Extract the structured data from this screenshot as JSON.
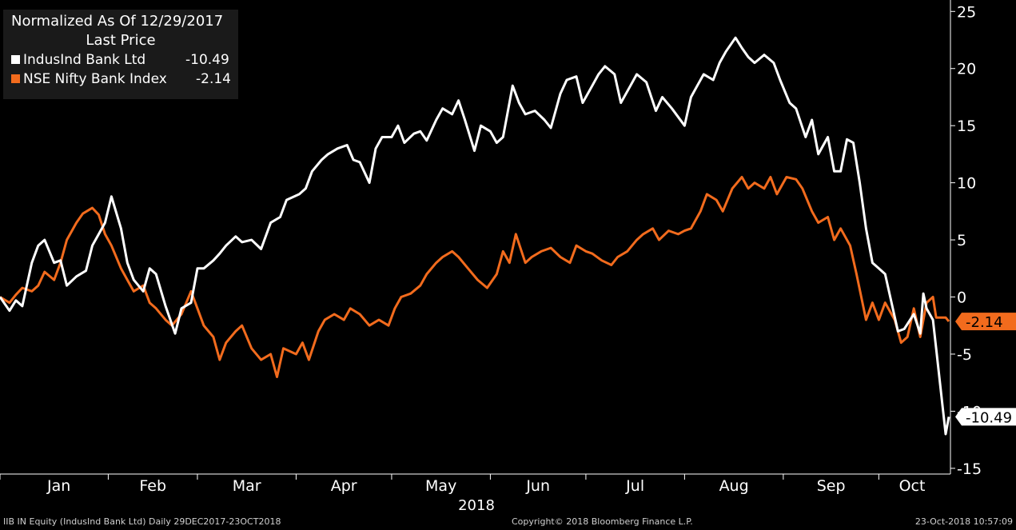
{
  "legend": {
    "title": "Normalized As Of 12/29/2017",
    "subtitle": "Last Price",
    "entries": [
      {
        "name": "IndusInd Bank Ltd",
        "value": "-10.49",
        "color": "#ffffff"
      },
      {
        "name": "NSE Nifty Bank Index",
        "value": "-2.14",
        "color": "#f26b1d"
      }
    ]
  },
  "footer": {
    "left": "IIB IN Equity (IndusInd Bank Ltd)  Daily 29DEC2017-23OCT2018",
    "center": "Copyright© 2018 Bloomberg Finance L.P.",
    "right": "23-Oct-2018 10:57:09"
  },
  "chart_data": {
    "type": "line",
    "xlabel": "2018",
    "x_ticks": [
      "Jan",
      "Feb",
      "Mar",
      "Apr",
      "May",
      "Jun",
      "Jul",
      "Aug",
      "Sep",
      "Oct"
    ],
    "y_ticks": [
      25,
      20,
      15,
      10,
      5,
      0,
      -5,
      -10,
      -15
    ],
    "ylim": [
      -15.5,
      26
    ],
    "xlim": [
      "2017-12-29",
      "2018-10-23"
    ],
    "grid": false,
    "legend_position": "top-left",
    "last_value_labels": [
      "-10.49",
      "-2.14"
    ],
    "series": [
      {
        "name": "IndusInd Bank Ltd",
        "color": "#ffffff",
        "points": [
          [
            "2017-12-29",
            0
          ],
          [
            "2018-01-01",
            -1.2
          ],
          [
            "2018-01-03",
            -0.3
          ],
          [
            "2018-01-05",
            -0.8
          ],
          [
            "2018-01-08",
            3.0
          ],
          [
            "2018-01-10",
            4.5
          ],
          [
            "2018-01-12",
            5.0
          ],
          [
            "2018-01-15",
            3.0
          ],
          [
            "2018-01-17",
            3.2
          ],
          [
            "2018-01-19",
            1.0
          ],
          [
            "2018-01-22",
            1.8
          ],
          [
            "2018-01-25",
            2.3
          ],
          [
            "2018-01-27",
            4.5
          ],
          [
            "2018-01-29",
            5.5
          ],
          [
            "2018-01-31",
            6.5
          ],
          [
            "2018-02-02",
            8.8
          ],
          [
            "2018-02-05",
            6.0
          ],
          [
            "2018-02-07",
            3.0
          ],
          [
            "2018-02-09",
            1.5
          ],
          [
            "2018-02-12",
            0.5
          ],
          [
            "2018-02-14",
            2.5
          ],
          [
            "2018-02-16",
            2.0
          ],
          [
            "2018-02-19",
            -0.8
          ],
          [
            "2018-02-22",
            -3.2
          ],
          [
            "2018-02-24",
            -1.0
          ],
          [
            "2018-02-27",
            -0.5
          ],
          [
            "2018-03-01",
            2.5
          ],
          [
            "2018-03-03",
            2.5
          ],
          [
            "2018-03-06",
            3.2
          ],
          [
            "2018-03-08",
            3.8
          ],
          [
            "2018-03-10",
            4.5
          ],
          [
            "2018-03-13",
            5.3
          ],
          [
            "2018-03-15",
            4.8
          ],
          [
            "2018-03-18",
            5.0
          ],
          [
            "2018-03-21",
            4.2
          ],
          [
            "2018-03-24",
            6.5
          ],
          [
            "2018-03-27",
            7.0
          ],
          [
            "2018-03-29",
            8.5
          ],
          [
            "2018-04-02",
            9.0
          ],
          [
            "2018-04-04",
            9.5
          ],
          [
            "2018-04-06",
            11.0
          ],
          [
            "2018-04-09",
            12.0
          ],
          [
            "2018-04-11",
            12.5
          ],
          [
            "2018-04-14",
            13.0
          ],
          [
            "2018-04-17",
            13.3
          ],
          [
            "2018-04-19",
            12.0
          ],
          [
            "2018-04-21",
            11.8
          ],
          [
            "2018-04-24",
            10.0
          ],
          [
            "2018-04-26",
            13.0
          ],
          [
            "2018-04-28",
            14.0
          ],
          [
            "2018-05-01",
            14.0
          ],
          [
            "2018-05-03",
            15.0
          ],
          [
            "2018-05-05",
            13.5
          ],
          [
            "2018-05-08",
            14.3
          ],
          [
            "2018-05-10",
            14.5
          ],
          [
            "2018-05-12",
            13.7
          ],
          [
            "2018-05-15",
            15.5
          ],
          [
            "2018-05-17",
            16.5
          ],
          [
            "2018-05-20",
            16.0
          ],
          [
            "2018-05-22",
            17.2
          ],
          [
            "2018-05-24",
            15.5
          ],
          [
            "2018-05-27",
            12.8
          ],
          [
            "2018-05-29",
            15.0
          ],
          [
            "2018-06-01",
            14.5
          ],
          [
            "2018-06-03",
            13.5
          ],
          [
            "2018-06-05",
            14.0
          ],
          [
            "2018-06-08",
            18.5
          ],
          [
            "2018-06-10",
            17.0
          ],
          [
            "2018-06-12",
            16.0
          ],
          [
            "2018-06-15",
            16.3
          ],
          [
            "2018-06-18",
            15.5
          ],
          [
            "2018-06-20",
            14.8
          ],
          [
            "2018-06-23",
            17.8
          ],
          [
            "2018-06-25",
            19.0
          ],
          [
            "2018-06-28",
            19.3
          ],
          [
            "2018-06-30",
            17.0
          ],
          [
            "2018-07-03",
            18.5
          ],
          [
            "2018-07-05",
            19.5
          ],
          [
            "2018-07-07",
            20.2
          ],
          [
            "2018-07-10",
            19.5
          ],
          [
            "2018-07-12",
            17.0
          ],
          [
            "2018-07-15",
            18.5
          ],
          [
            "2018-07-17",
            19.5
          ],
          [
            "2018-07-20",
            18.8
          ],
          [
            "2018-07-23",
            16.3
          ],
          [
            "2018-07-25",
            17.5
          ],
          [
            "2018-07-28",
            16.5
          ],
          [
            "2018-08-01",
            15.0
          ],
          [
            "2018-08-03",
            17.5
          ],
          [
            "2018-08-05",
            18.5
          ],
          [
            "2018-08-07",
            19.5
          ],
          [
            "2018-08-10",
            19.0
          ],
          [
            "2018-08-12",
            20.5
          ],
          [
            "2018-08-14",
            21.5
          ],
          [
            "2018-08-17",
            22.7
          ],
          [
            "2018-08-19",
            21.8
          ],
          [
            "2018-08-21",
            21.0
          ],
          [
            "2018-08-23",
            20.5
          ],
          [
            "2018-08-26",
            21.2
          ],
          [
            "2018-08-29",
            20.5
          ],
          [
            "2018-08-31",
            19.0
          ],
          [
            "2018-09-03",
            17.0
          ],
          [
            "2018-09-05",
            16.5
          ],
          [
            "2018-09-08",
            14.0
          ],
          [
            "2018-09-10",
            15.5
          ],
          [
            "2018-09-12",
            12.5
          ],
          [
            "2018-09-15",
            14.0
          ],
          [
            "2018-09-17",
            11.0
          ],
          [
            "2018-09-19",
            11.0
          ],
          [
            "2018-09-21",
            13.8
          ],
          [
            "2018-09-23",
            13.5
          ],
          [
            "2018-09-25",
            10.0
          ],
          [
            "2018-09-27",
            6.0
          ],
          [
            "2018-09-29",
            3.0
          ],
          [
            "2018-10-01",
            2.5
          ],
          [
            "2018-10-03",
            2.0
          ],
          [
            "2018-10-05",
            -0.5
          ],
          [
            "2018-10-07",
            -3.0
          ],
          [
            "2018-10-09",
            -2.8
          ],
          [
            "2018-10-12",
            -1.5
          ],
          [
            "2018-10-14",
            -3.2
          ],
          [
            "2018-10-15",
            0.3
          ],
          [
            "2018-10-16",
            -1.0
          ],
          [
            "2018-10-18",
            -2.0
          ],
          [
            "2018-10-19",
            -4.5
          ],
          [
            "2018-10-22",
            -12.0
          ],
          [
            "2018-10-23",
            -10.49
          ]
        ]
      },
      {
        "name": "NSE Nifty Bank Index",
        "color": "#f26b1d",
        "points": [
          [
            "2017-12-29",
            0
          ],
          [
            "2018-01-01",
            -0.5
          ],
          [
            "2018-01-03",
            0.2
          ],
          [
            "2018-01-05",
            0.8
          ],
          [
            "2018-01-08",
            0.5
          ],
          [
            "2018-01-10",
            1.0
          ],
          [
            "2018-01-12",
            2.2
          ],
          [
            "2018-01-15",
            1.5
          ],
          [
            "2018-01-17",
            3.0
          ],
          [
            "2018-01-19",
            5.0
          ],
          [
            "2018-01-22",
            6.5
          ],
          [
            "2018-01-24",
            7.3
          ],
          [
            "2018-01-27",
            7.8
          ],
          [
            "2018-01-29",
            7.2
          ],
          [
            "2018-01-31",
            5.5
          ],
          [
            "2018-02-02",
            4.5
          ],
          [
            "2018-02-05",
            2.5
          ],
          [
            "2018-02-07",
            1.5
          ],
          [
            "2018-02-09",
            0.5
          ],
          [
            "2018-02-12",
            1.0
          ],
          [
            "2018-02-14",
            -0.5
          ],
          [
            "2018-02-16",
            -1.0
          ],
          [
            "2018-02-19",
            -2.0
          ],
          [
            "2018-02-21",
            -2.5
          ],
          [
            "2018-02-24",
            -1.5
          ],
          [
            "2018-02-27",
            0.5
          ],
          [
            "2018-03-01",
            -1.0
          ],
          [
            "2018-03-03",
            -2.5
          ],
          [
            "2018-03-06",
            -3.5
          ],
          [
            "2018-03-08",
            -5.5
          ],
          [
            "2018-03-10",
            -4.0
          ],
          [
            "2018-03-13",
            -3.0
          ],
          [
            "2018-03-15",
            -2.5
          ],
          [
            "2018-03-18",
            -4.5
          ],
          [
            "2018-03-21",
            -5.5
          ],
          [
            "2018-03-24",
            -5.0
          ],
          [
            "2018-03-26",
            -7.0
          ],
          [
            "2018-03-28",
            -4.5
          ],
          [
            "2018-04-01",
            -5.0
          ],
          [
            "2018-04-03",
            -4.0
          ],
          [
            "2018-04-05",
            -5.5
          ],
          [
            "2018-04-08",
            -3.0
          ],
          [
            "2018-04-10",
            -2.0
          ],
          [
            "2018-04-13",
            -1.5
          ],
          [
            "2018-04-16",
            -2.0
          ],
          [
            "2018-04-18",
            -1.0
          ],
          [
            "2018-04-21",
            -1.5
          ],
          [
            "2018-04-24",
            -2.5
          ],
          [
            "2018-04-27",
            -2.0
          ],
          [
            "2018-04-30",
            -2.5
          ],
          [
            "2018-05-02",
            -1.0
          ],
          [
            "2018-05-04",
            0.0
          ],
          [
            "2018-05-07",
            0.3
          ],
          [
            "2018-05-10",
            1.0
          ],
          [
            "2018-05-12",
            2.0
          ],
          [
            "2018-05-15",
            3.0
          ],
          [
            "2018-05-17",
            3.5
          ],
          [
            "2018-05-20",
            4.0
          ],
          [
            "2018-05-22",
            3.5
          ],
          [
            "2018-05-25",
            2.5
          ],
          [
            "2018-05-28",
            1.5
          ],
          [
            "2018-05-31",
            0.8
          ],
          [
            "2018-06-03",
            2.0
          ],
          [
            "2018-06-05",
            4.0
          ],
          [
            "2018-06-07",
            3.0
          ],
          [
            "2018-06-09",
            5.5
          ],
          [
            "2018-06-12",
            3.0
          ],
          [
            "2018-06-14",
            3.5
          ],
          [
            "2018-06-17",
            4.0
          ],
          [
            "2018-06-20",
            4.3
          ],
          [
            "2018-06-23",
            3.5
          ],
          [
            "2018-06-26",
            3.0
          ],
          [
            "2018-06-28",
            4.5
          ],
          [
            "2018-07-01",
            4.0
          ],
          [
            "2018-07-03",
            3.8
          ],
          [
            "2018-07-06",
            3.2
          ],
          [
            "2018-07-09",
            2.8
          ],
          [
            "2018-07-11",
            3.5
          ],
          [
            "2018-07-14",
            4.0
          ],
          [
            "2018-07-17",
            5.0
          ],
          [
            "2018-07-19",
            5.5
          ],
          [
            "2018-07-22",
            6.0
          ],
          [
            "2018-07-24",
            5.0
          ],
          [
            "2018-07-27",
            5.8
          ],
          [
            "2018-07-30",
            5.5
          ],
          [
            "2018-08-01",
            5.8
          ],
          [
            "2018-08-03",
            6.0
          ],
          [
            "2018-08-06",
            7.5
          ],
          [
            "2018-08-08",
            9.0
          ],
          [
            "2018-08-11",
            8.5
          ],
          [
            "2018-08-13",
            7.5
          ],
          [
            "2018-08-16",
            9.5
          ],
          [
            "2018-08-19",
            10.5
          ],
          [
            "2018-08-21",
            9.5
          ],
          [
            "2018-08-23",
            10.0
          ],
          [
            "2018-08-26",
            9.5
          ],
          [
            "2018-08-28",
            10.5
          ],
          [
            "2018-08-30",
            9.0
          ],
          [
            "2018-09-02",
            10.5
          ],
          [
            "2018-09-05",
            10.3
          ],
          [
            "2018-09-07",
            9.5
          ],
          [
            "2018-09-10",
            7.5
          ],
          [
            "2018-09-12",
            6.5
          ],
          [
            "2018-09-15",
            7.0
          ],
          [
            "2018-09-17",
            5.0
          ],
          [
            "2018-09-19",
            6.0
          ],
          [
            "2018-09-22",
            4.5
          ],
          [
            "2018-09-24",
            2.0
          ],
          [
            "2018-09-27",
            -2.0
          ],
          [
            "2018-09-29",
            -0.5
          ],
          [
            "2018-10-01",
            -2.0
          ],
          [
            "2018-10-03",
            -0.5
          ],
          [
            "2018-10-06",
            -2.0
          ],
          [
            "2018-10-08",
            -4.0
          ],
          [
            "2018-10-10",
            -3.5
          ],
          [
            "2018-10-12",
            -1.0
          ],
          [
            "2018-10-14",
            -3.5
          ],
          [
            "2018-10-16",
            -0.5
          ],
          [
            "2018-10-18",
            0.0
          ],
          [
            "2018-10-19",
            -1.8
          ],
          [
            "2018-10-22",
            -1.8
          ],
          [
            "2018-10-23",
            -2.14
          ]
        ]
      }
    ]
  }
}
